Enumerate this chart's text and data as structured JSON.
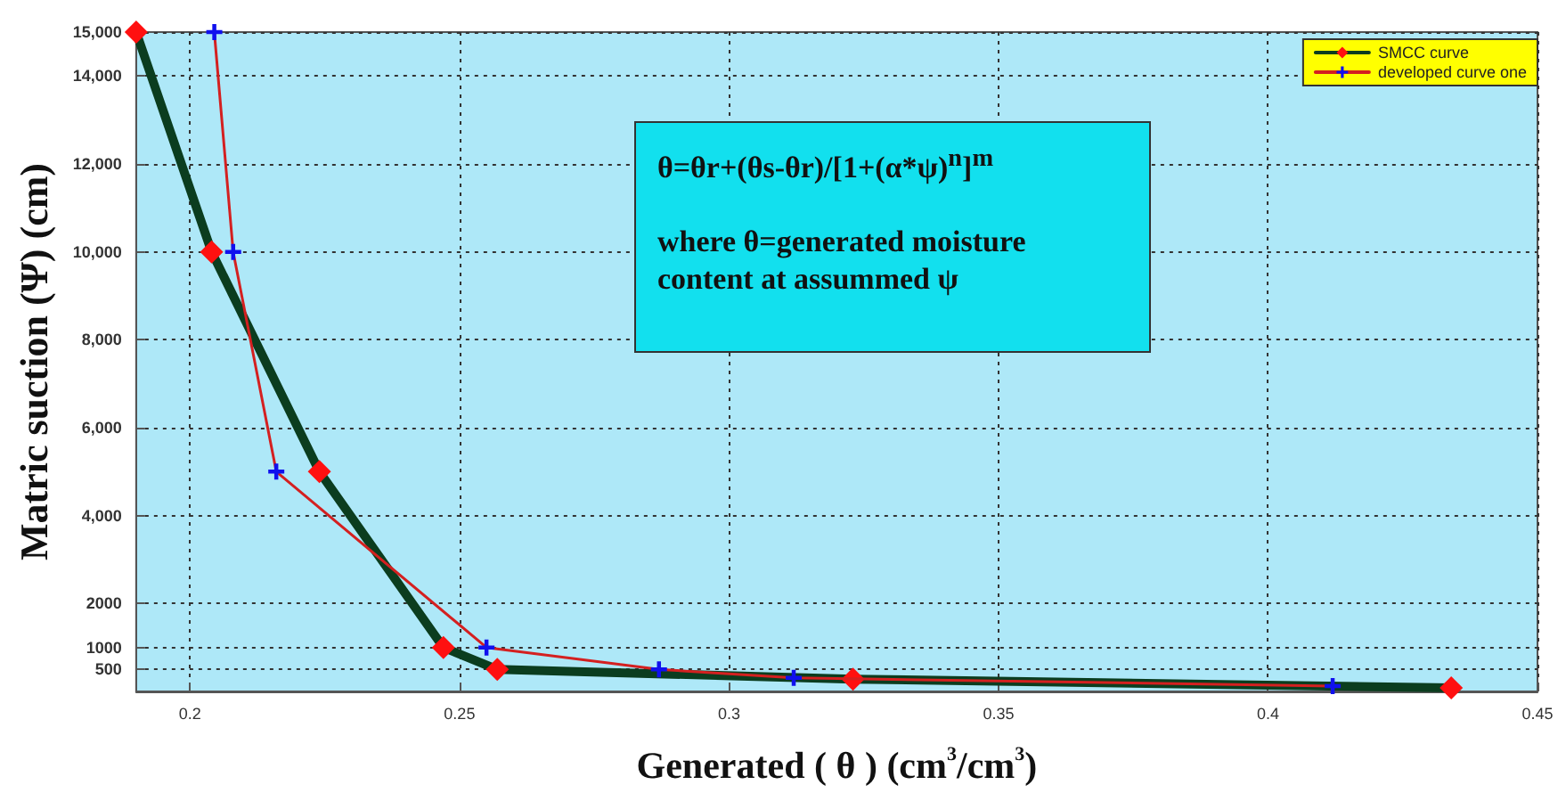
{
  "chart_data": {
    "type": "line",
    "xlabel": "Generated ( θ ) (cm$^{3}$/cm$^{3}$)",
    "ylabel": "Matric suction (Ψ) (cm)",
    "annotations": [
      "θ=θr+(θs-θr)/[1+(α*ψ)$^{n}$]$^{m}$",
      "where θ=generated moisture content at assummed ψ"
    ],
    "series": [
      {
        "name": "SMCC curve",
        "color": "#0b3d1f",
        "marker": "diamond",
        "colors": [
          "#ff1010",
          "#ff1010",
          "#ff1010",
          "#ff1010",
          "#ff1010",
          "#ff1010",
          "#ff1010"
        ],
        "x": [
          0.19,
          0.204,
          0.224,
          0.247,
          0.257,
          0.323,
          0.434
        ],
        "values": [
          15000,
          10000,
          5000,
          1000,
          500,
          280,
          80
        ]
      },
      {
        "name": "developed curve one",
        "color": "#d42020",
        "marker": "cross",
        "colors": [
          "#1010ee",
          "#1010ee",
          "#1010ee",
          "#1010ee",
          "#1010ee",
          "#1010ee",
          "#1010ee"
        ],
        "x": [
          0.2045,
          0.208,
          0.216,
          0.255,
          0.287,
          0.312,
          0.412
        ],
        "values": [
          15000,
          10000,
          5000,
          1000,
          500,
          310,
          120
        ]
      }
    ],
    "xlim": [
      0.19,
      0.45
    ],
    "xticks": [
      0.2,
      0.25,
      0.3,
      0.35,
      0.4,
      0.45
    ],
    "ylim": [
      0,
      15000
    ],
    "yticks": [
      500,
      1000,
      2000,
      {
        "value": 4000,
        "label": "4,000"
      },
      {
        "value": 6000,
        "label": "6,000"
      },
      {
        "value": 8000,
        "label": "8,000"
      },
      {
        "value": 10000,
        "label": "10,000"
      },
      {
        "value": 12000,
        "label": "12,000"
      },
      {
        "value": 14000,
        "label": "14,000"
      },
      {
        "value": 15000,
        "label": "15,000"
      }
    ],
    "grid": true,
    "legend": "top right",
    "line_style": "solid"
  }
}
